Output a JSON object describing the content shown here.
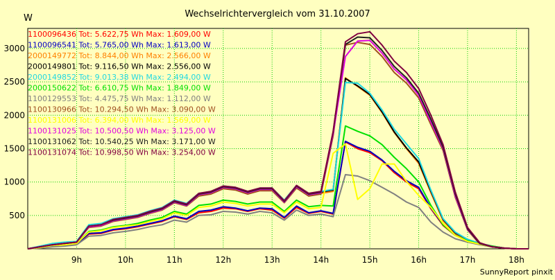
{
  "chart_data": {
    "type": "line",
    "title": "Wechselrichtervergleich vom 31.10.2007",
    "ylabel": "W",
    "footer": "SunnyReport pinxit",
    "xlim": [
      8.0,
      18.25
    ],
    "ylim": [
      0,
      3300
    ],
    "yticks": [
      500,
      1000,
      1500,
      2000,
      2500,
      3000
    ],
    "xticks": [
      {
        "value": 9,
        "label": "9h"
      },
      {
        "value": 10,
        "label": "10h"
      },
      {
        "value": 11,
        "label": "11h"
      },
      {
        "value": 12,
        "label": "12h"
      },
      {
        "value": 13,
        "label": "13h"
      },
      {
        "value": 14,
        "label": "14h"
      },
      {
        "value": 15,
        "label": "15h"
      },
      {
        "value": 16,
        "label": "16h"
      },
      {
        "value": 17,
        "label": "17h"
      },
      {
        "value": 18,
        "label": "18h"
      }
    ],
    "grid": true,
    "legend_position": "top-left",
    "x": [
      8.0,
      8.25,
      8.5,
      8.75,
      9.0,
      9.25,
      9.5,
      9.75,
      10.0,
      10.25,
      10.5,
      10.75,
      11.0,
      11.25,
      11.5,
      11.75,
      12.0,
      12.25,
      12.5,
      12.75,
      13.0,
      13.25,
      13.5,
      13.75,
      14.0,
      14.25,
      14.5,
      14.75,
      15.0,
      15.25,
      15.5,
      15.75,
      16.0,
      16.25,
      16.5,
      16.75,
      17.0,
      17.25,
      17.5,
      17.75,
      18.0,
      18.25
    ],
    "series": [
      {
        "name": "1100096436",
        "tot": "Tot: 5.622,75 Wh",
        "max": "Max: 1.609,00 W",
        "color": "#ff0000",
        "values": [
          0,
          20,
          50,
          60,
          70,
          220,
          230,
          280,
          300,
          330,
          370,
          410,
          480,
          440,
          540,
          560,
          610,
          600,
          560,
          600,
          580,
          460,
          620,
          530,
          560,
          520,
          1600,
          1500,
          1440,
          1320,
          1140,
          1000,
          900,
          600,
          350,
          200,
          120,
          70,
          40,
          10,
          0,
          0
        ]
      },
      {
        "name": "1100096541",
        "tot": "Tot: 5.765,00 Wh",
        "max": "Max: 1.613,00 W",
        "color": "#0000c0",
        "values": [
          0,
          20,
          50,
          60,
          70,
          230,
          240,
          290,
          310,
          340,
          380,
          420,
          490,
          450,
          560,
          580,
          630,
          610,
          570,
          610,
          600,
          470,
          640,
          540,
          570,
          530,
          1610,
          1520,
          1460,
          1330,
          1160,
          1020,
          920,
          610,
          360,
          210,
          120,
          80,
          40,
          10,
          0,
          0
        ]
      },
      {
        "name": "2000149772",
        "tot": "Tot: 8.844,00 Wh",
        "max": "Max: 2.566,00 W",
        "color": "#ff8000",
        "values": [
          0,
          30,
          60,
          80,
          100,
          330,
          350,
          420,
          450,
          480,
          540,
          590,
          700,
          650,
          800,
          830,
          910,
          890,
          830,
          880,
          880,
          700,
          920,
          800,
          830,
          860,
          2560,
          2430,
          2300,
          2040,
          1740,
          1500,
          1280,
          840,
          420,
          230,
          130,
          80,
          40,
          10,
          0,
          0
        ]
      },
      {
        "name": "2000149801",
        "tot": "Tot: 9.116,50 Wh",
        "max": "Max: 2.556,00 W",
        "color": "#000000",
        "values": [
          0,
          30,
          60,
          80,
          100,
          340,
          360,
          430,
          460,
          500,
          560,
          610,
          720,
          670,
          820,
          850,
          930,
          910,
          850,
          900,
          900,
          720,
          940,
          820,
          850,
          880,
          2550,
          2440,
          2310,
          2050,
          1750,
          1510,
          1300,
          860,
          440,
          240,
          140,
          80,
          40,
          10,
          0,
          0
        ]
      },
      {
        "name": "2000149852",
        "tot": "Tot: 9.013,38 Wh",
        "max": "Max: 2.494,00 W",
        "color": "#20d8e0",
        "values": [
          0,
          40,
          80,
          100,
          110,
          360,
          380,
          450,
          480,
          510,
          570,
          620,
          730,
          680,
          830,
          860,
          940,
          920,
          860,
          910,
          910,
          730,
          950,
          830,
          860,
          890,
          2490,
          2480,
          2330,
          2080,
          1790,
          1570,
          1350,
          880,
          450,
          250,
          140,
          80,
          40,
          10,
          0,
          0
        ]
      },
      {
        "name": "2000150622",
        "tot": "Tot: 6.610,75 Wh",
        "max": "Max: 1.849,00 W",
        "color": "#00e000",
        "values": [
          0,
          20,
          50,
          60,
          80,
          260,
          280,
          330,
          350,
          380,
          430,
          470,
          560,
          520,
          650,
          670,
          730,
          710,
          670,
          700,
          700,
          560,
          730,
          630,
          650,
          640,
          1840,
          1760,
          1690,
          1560,
          1370,
          1200,
          1000,
          650,
          360,
          200,
          120,
          70,
          40,
          10,
          0,
          0
        ]
      },
      {
        "name": "1100129553",
        "tot": "Tot: 4.475,75 Wh",
        "max": "Max: 1.112,00 W",
        "color": "#808080",
        "values": [
          0,
          10,
          30,
          40,
          60,
          190,
          200,
          240,
          260,
          290,
          330,
          360,
          430,
          400,
          500,
          510,
          560,
          550,
          520,
          560,
          540,
          430,
          580,
          500,
          520,
          480,
          1110,
          1090,
          1020,
          920,
          820,
          700,
          620,
          400,
          250,
          150,
          100,
          60,
          30,
          10,
          0,
          0
        ]
      },
      {
        "name": "1100130966",
        "tot": "Tot: 10.294,50 Wh",
        "max": "Max: 3.090,00 W",
        "color": "#a05020",
        "values": [
          0,
          30,
          60,
          80,
          100,
          320,
          340,
          410,
          440,
          470,
          530,
          580,
          690,
          640,
          790,
          820,
          900,
          880,
          820,
          870,
          870,
          690,
          910,
          790,
          820,
          1690,
          3050,
          3090,
          3060,
          2880,
          2640,
          2480,
          2260,
          1860,
          1470,
          770,
          280,
          70,
          30,
          10,
          0,
          0
        ]
      },
      {
        "name": "1100131006",
        "tot": "Tot: 6.394,00 Wh",
        "max": "Max: 1.569,00 W",
        "color": "#ffff00",
        "values": [
          0,
          20,
          50,
          60,
          80,
          250,
          270,
          320,
          340,
          360,
          410,
          450,
          540,
          500,
          620,
          640,
          700,
          680,
          640,
          670,
          670,
          540,
          700,
          600,
          620,
          1430,
          1570,
          740,
          900,
          1270,
          1270,
          1010,
          800,
          620,
          380,
          200,
          110,
          70,
          30,
          10,
          0,
          0
        ]
      },
      {
        "name": "1100131025",
        "tot": "Tot: 10.500,50 Wh",
        "max": "Max: 3.125,00 W",
        "color": "#e000e0",
        "values": [
          0,
          30,
          60,
          80,
          100,
          330,
          350,
          420,
          450,
          480,
          540,
          590,
          700,
          650,
          810,
          840,
          920,
          900,
          840,
          890,
          890,
          700,
          930,
          810,
          840,
          1720,
          2880,
          3110,
          3120,
          2930,
          2690,
          2530,
          2300,
          1900,
          1500,
          790,
          290,
          80,
          30,
          10,
          0,
          0
        ]
      },
      {
        "name": "1100131062",
        "tot": "Tot: 10.540,25 Wh",
        "max": "Max: 3.171,00 W",
        "color": "#202020",
        "values": [
          0,
          30,
          60,
          80,
          100,
          340,
          360,
          430,
          460,
          490,
          550,
          600,
          710,
          660,
          820,
          850,
          930,
          910,
          850,
          900,
          900,
          710,
          940,
          820,
          850,
          1750,
          3060,
          3170,
          3160,
          2970,
          2730,
          2560,
          2330,
          1940,
          1520,
          820,
          300,
          80,
          30,
          10,
          0,
          0
        ]
      },
      {
        "name": "1100131074",
        "tot": "Tot: 10.998,50 Wh",
        "max": "Max: 3.254,00 W",
        "color": "#800040",
        "values": [
          0,
          30,
          60,
          80,
          100,
          340,
          360,
          440,
          470,
          500,
          560,
          610,
          720,
          670,
          830,
          860,
          940,
          920,
          860,
          910,
          910,
          720,
          950,
          830,
          860,
          1760,
          3100,
          3220,
          3250,
          3050,
          2810,
          2640,
          2400,
          2000,
          1560,
          850,
          320,
          90,
          30,
          10,
          0,
          0
        ]
      }
    ]
  }
}
